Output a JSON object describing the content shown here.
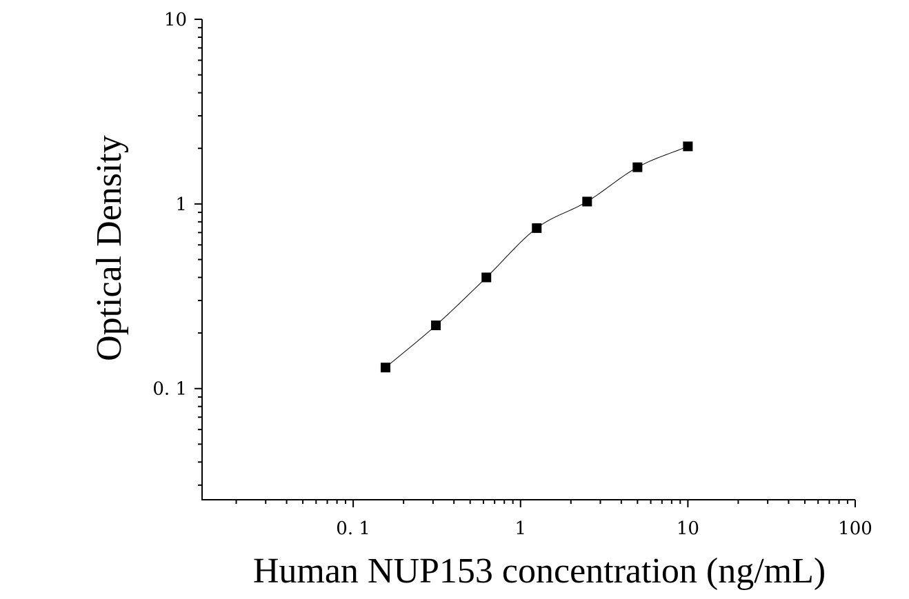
{
  "chart_data": {
    "type": "scatter",
    "xlabel": "Human NUP153 concentration (ng/mL)",
    "ylabel": "Optical Density",
    "x_scale": "log",
    "y_scale": "log",
    "xlim": [
      0.0125,
      100
    ],
    "ylim": [
      0.025,
      10
    ],
    "x_ticks": [
      {
        "value": 0.1,
        "label": "0. 1"
      },
      {
        "value": 1,
        "label": "1"
      },
      {
        "value": 10,
        "label": "10"
      },
      {
        "value": 100,
        "label": "100"
      }
    ],
    "y_ticks": [
      {
        "value": 0.1,
        "label": "0. 1"
      },
      {
        "value": 1,
        "label": "1"
      },
      {
        "value": 10,
        "label": "10"
      }
    ],
    "grid": false,
    "series": [
      {
        "x": [
          0.156,
          0.312,
          0.625,
          1.25,
          2.5,
          5,
          10
        ],
        "y": [
          0.13,
          0.22,
          0.4,
          0.74,
          1.03,
          1.58,
          2.05
        ],
        "marker": "square",
        "color": "#000000",
        "fit_curve": true
      }
    ]
  }
}
